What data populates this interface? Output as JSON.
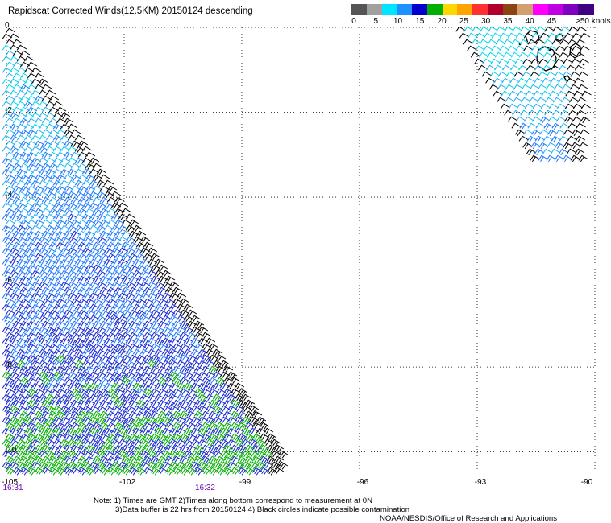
{
  "title": "Rapidscat Corrected Winds(12.5KM) 20150124 descending",
  "colorbar": {
    "labels": [
      "0",
      "5",
      "10",
      "15",
      "20",
      "25",
      "30",
      "35",
      "40",
      "45",
      ">50 knots"
    ],
    "colors": [
      "#555555",
      "#a0a0a0",
      "#00e5ff",
      "#1e90ff",
      "#0000cd",
      "#00b000",
      "#ffd700",
      "#ffa500",
      "#ff3030",
      "#b0002b",
      "#8b4513",
      "#d2a070",
      "#ff00ff",
      "#c000e0",
      "#8000c0",
      "#400080"
    ]
  },
  "axes": {
    "x_ticks": [
      "-105",
      "-102",
      "-99",
      "-96",
      "-93",
      "-90"
    ],
    "y_ticks": [
      "0",
      "-2",
      "-4",
      "-6",
      "-8",
      "-10"
    ],
    "x_range": [
      -105,
      -90
    ],
    "y_range": [
      -10.5,
      0
    ]
  },
  "time_labels": [
    {
      "lon": -105,
      "text": "16:31"
    },
    {
      "lon": -100.1,
      "text": "16:32"
    }
  ],
  "notes": [
    "Note: 1) Times are GMT 2)Times along bottom correspond to measurement at 0N",
    "3)Data buffer is 22 hrs from 20150124 4) Black circles indicate possible contamination"
  ],
  "credit": "NOAA/NESDIS/Office of Research and Applications",
  "wind_field": {
    "units": "knots",
    "swath_1": {
      "lon_west_edge": -105,
      "east_edge_at_lat0": -104.8,
      "east_edge_at_lat_-10": -97.8,
      "speed_range": [
        5,
        18
      ]
    },
    "swath_2": {
      "lon_range": [
        -93.3,
        -90
      ],
      "lat_range": [
        -3.2,
        0
      ],
      "speed_range": [
        5,
        12
      ]
    }
  }
}
